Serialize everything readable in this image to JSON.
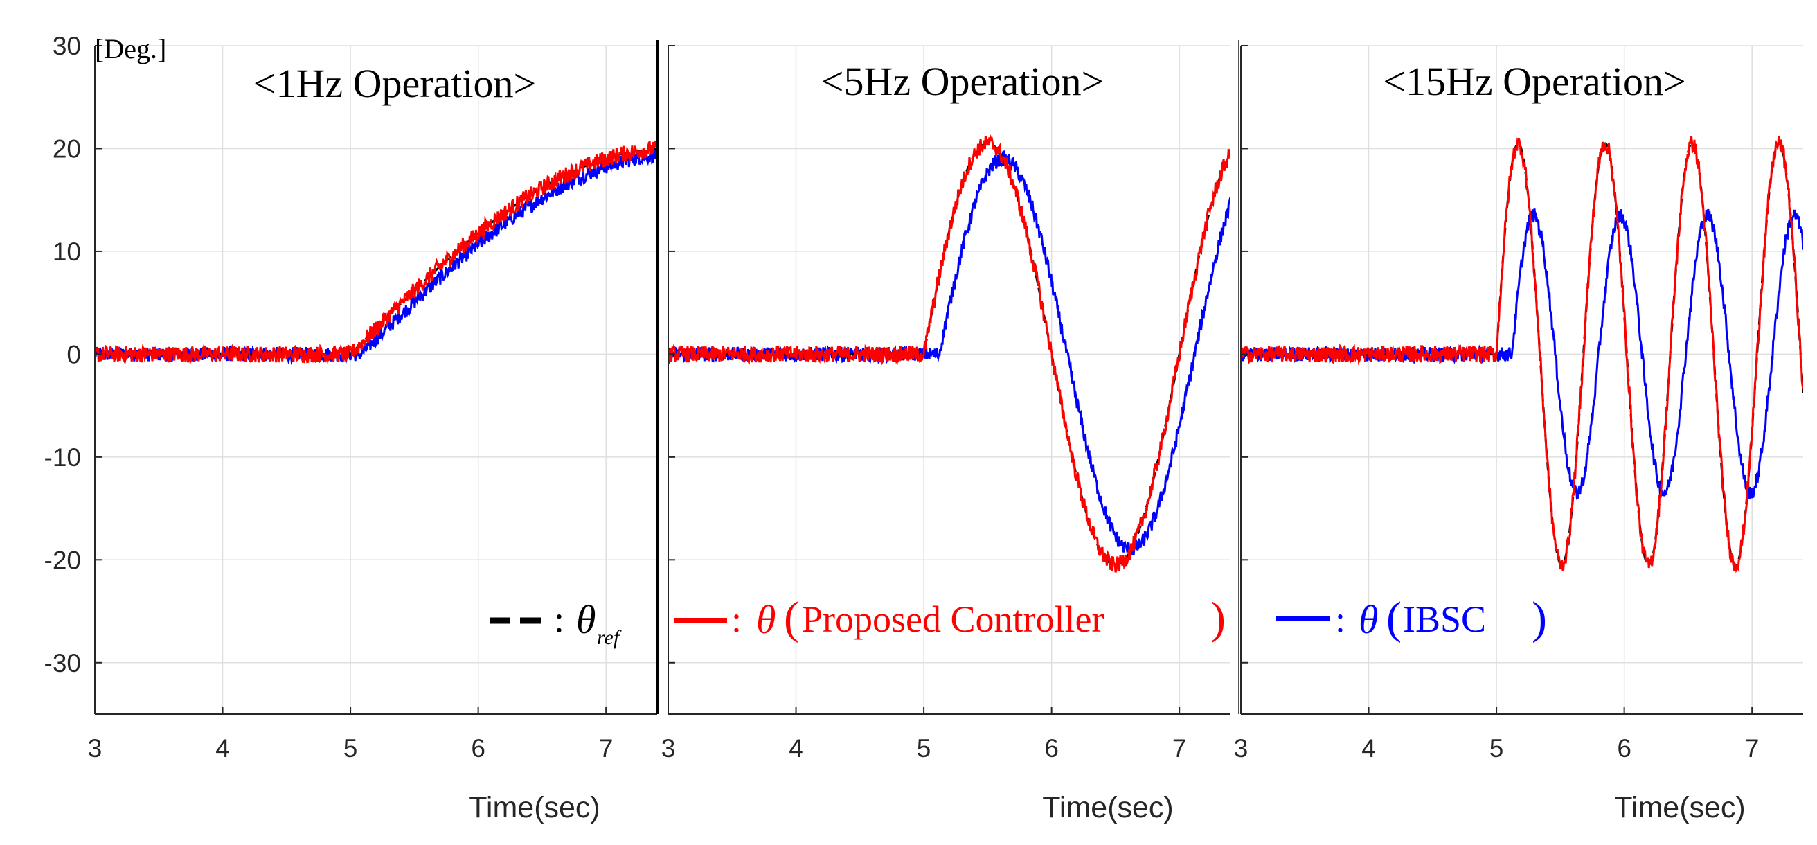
{
  "chart_data": {
    "type": "line",
    "y_unit_label": "[Deg.]",
    "ylim": [
      -35,
      30
    ],
    "y_ticks": [
      30,
      20,
      10,
      0,
      -10,
      -20,
      -30
    ],
    "xlim": [
      3,
      7.4
    ],
    "x_ticks": [
      3,
      4,
      5,
      6,
      7
    ],
    "grid": true,
    "panels": [
      {
        "title": "<1Hz Operation>",
        "xlabel": "Time(sec)",
        "frequency_hz": 1,
        "amplitude_reference_deg": 20,
        "amplitude_ibsc_deg": 19.5,
        "phase_lag_ibsc_sec": 0.08,
        "step_start_sec": 5,
        "x_tick_labels": [
          "3",
          "4",
          "5",
          "6",
          "7"
        ]
      },
      {
        "title": "<5Hz Operation>",
        "xlabel": "Time(sec)",
        "frequency_hz": 5,
        "amplitude_reference_deg": 20.5,
        "amplitude_ibsc_deg": 19,
        "phase_lag_ibsc_sec": 0.12,
        "step_start_sec": 5,
        "x_tick_labels": [
          "3",
          "4",
          "5",
          "6",
          "7"
        ]
      },
      {
        "title": "<15Hz Operation>",
        "xlabel": "Time(sec)",
        "frequency_hz": 15,
        "amplitude_reference_deg": 20.5,
        "amplitude_ibsc_deg": 13.5,
        "phase_lag_ibsc_sec": 0.12,
        "step_start_sec": 5,
        "x_tick_labels": [
          "3",
          "4",
          "5",
          "6",
          "7"
        ]
      }
    ],
    "series": [
      {
        "name": "θ_ref",
        "color": "#000000",
        "style": "dashed"
      },
      {
        "name": "θ (Proposed Controller)",
        "color": "#ff0000",
        "style": "solid"
      },
      {
        "name": "θ (IBSC)",
        "color": "#0000ff",
        "style": "solid"
      }
    ],
    "legend": {
      "placement": "bottom",
      "separator": ":",
      "theta": "θ",
      "ref_subscript": "ref",
      "paren_open": "(",
      "paren_close": ")",
      "proposed_label": "Proposed Controller",
      "ibsc_label": "IBSC"
    }
  }
}
